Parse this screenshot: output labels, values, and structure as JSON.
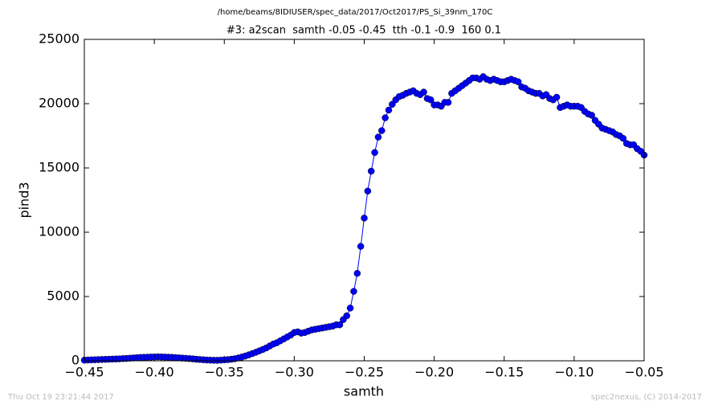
{
  "chart_data": {
    "type": "line",
    "title": "/home/beams/8IDIUSER/spec_data/2017/Oct2017/PS_Si_39nm_170C",
    "subtitle": "#3: a2scan  samth -0.05 -0.45  tth -0.1 -0.9  160 0.1",
    "xlabel": "samth",
    "ylabel": "pind3",
    "annotations": [
      "Thu Oct 19 23:21:44 2017",
      "spec2nexus, (C) 2014-2017"
    ],
    "color": "#0000ff",
    "x": [
      -0.45,
      -0.4475,
      -0.445,
      -0.4425,
      -0.44,
      -0.4375,
      -0.435,
      -0.4325,
      -0.43,
      -0.4275,
      -0.425,
      -0.4225,
      -0.42,
      -0.4175,
      -0.415,
      -0.4125,
      -0.41,
      -0.4075,
      -0.405,
      -0.4025,
      -0.4,
      -0.3975,
      -0.395,
      -0.3925,
      -0.39,
      -0.3875,
      -0.385,
      -0.3825,
      -0.38,
      -0.3775,
      -0.375,
      -0.3725,
      -0.37,
      -0.3675,
      -0.365,
      -0.3625,
      -0.36,
      -0.3575,
      -0.355,
      -0.3525,
      -0.35,
      -0.3475,
      -0.345,
      -0.3425,
      -0.34,
      -0.3375,
      -0.335,
      -0.3325,
      -0.33,
      -0.3275,
      -0.325,
      -0.3225,
      -0.32,
      -0.3175,
      -0.315,
      -0.3125,
      -0.31,
      -0.3075,
      -0.305,
      -0.3025,
      -0.3,
      -0.2975,
      -0.295,
      -0.2925,
      -0.29,
      -0.2875,
      -0.285,
      -0.2825,
      -0.28,
      -0.2775,
      -0.275,
      -0.2725,
      -0.27,
      -0.2675,
      -0.265,
      -0.2625,
      -0.26,
      -0.2575,
      -0.255,
      -0.2525,
      -0.25,
      -0.2475,
      -0.245,
      -0.2425,
      -0.24,
      -0.2375,
      -0.235,
      -0.2325,
      -0.23,
      -0.2275,
      -0.225,
      -0.2225,
      -0.22,
      -0.2175,
      -0.215,
      -0.2125,
      -0.21,
      -0.2075,
      -0.205,
      -0.2025,
      -0.2,
      -0.1975,
      -0.195,
      -0.1925,
      -0.19,
      -0.1875,
      -0.185,
      -0.1825,
      -0.18,
      -0.1775,
      -0.175,
      -0.1725,
      -0.17,
      -0.1675,
      -0.165,
      -0.1625,
      -0.16,
      -0.1575,
      -0.155,
      -0.1525,
      -0.15,
      -0.1475,
      -0.145,
      -0.1425,
      -0.14,
      -0.1375,
      -0.135,
      -0.1325,
      -0.13,
      -0.1275,
      -0.125,
      -0.1225,
      -0.12,
      -0.1175,
      -0.115,
      -0.1125,
      -0.11,
      -0.1075,
      -0.105,
      -0.1025,
      -0.1,
      -0.0975,
      -0.095,
      -0.0925,
      -0.09,
      -0.0875,
      -0.085,
      -0.0825,
      -0.08,
      -0.0775,
      -0.075,
      -0.0725,
      -0.07,
      -0.0675,
      -0.065,
      -0.0625,
      -0.06,
      -0.0575,
      -0.055,
      -0.0525,
      -0.05
    ],
    "values": [
      50,
      60,
      70,
      80,
      90,
      100,
      110,
      120,
      130,
      140,
      150,
      170,
      180,
      200,
      220,
      240,
      260,
      270,
      280,
      290,
      300,
      310,
      300,
      290,
      280,
      270,
      250,
      230,
      210,
      190,
      170,
      150,
      120,
      100,
      80,
      60,
      50,
      40,
      40,
      50,
      70,
      90,
      120,
      160,
      220,
      290,
      370,
      460,
      560,
      660,
      770,
      880,
      1000,
      1150,
      1300,
      1400,
      1550,
      1700,
      1850,
      2000,
      2200,
      2250,
      2150,
      2200,
      2300,
      2400,
      2450,
      2500,
      2550,
      2600,
      2650,
      2700,
      2800,
      2800,
      3200,
      3500,
      4100,
      5400,
      6800,
      8900,
      11100,
      13200,
      14750,
      16200,
      17400,
      17900,
      18900,
      19500,
      19950,
      20300,
      20550,
      20650,
      20800,
      20900,
      21000,
      20800,
      20700,
      20900,
      20400,
      20300,
      19900,
      19900,
      19800,
      20100,
      20100,
      20800,
      21000,
      21200,
      21400,
      21600,
      21800,
      22000,
      22000,
      21900,
      22100,
      21900,
      21800,
      21900,
      21800,
      21700,
      21700,
      21800,
      21900,
      21800,
      21700,
      21300,
      21200,
      21000,
      20900,
      20800,
      20800,
      20600,
      20700,
      20400,
      20300,
      20500,
      19700,
      19800,
      19900,
      19800,
      19800,
      19800,
      19700,
      19400,
      19200,
      19100,
      18700,
      18400,
      18100,
      18000,
      17900,
      17800,
      17600,
      17500,
      17300,
      16900,
      16800,
      16800,
      16500,
      16300,
      16000
    ],
    "xlim": [
      -0.45,
      -0.05
    ],
    "xticks": [
      {
        "value": -0.45,
        "label": "−0.45"
      },
      {
        "value": -0.4,
        "label": "−0.40"
      },
      {
        "value": -0.35,
        "label": "−0.35"
      },
      {
        "value": -0.3,
        "label": "−0.30"
      },
      {
        "value": -0.25,
        "label": "−0.25"
      },
      {
        "value": -0.2,
        "label": "−0.20"
      },
      {
        "value": -0.15,
        "label": "−0.15"
      },
      {
        "value": -0.1,
        "label": "−0.10"
      },
      {
        "value": -0.05,
        "label": "−0.05"
      }
    ],
    "ylim": [
      0,
      25000
    ],
    "yticks": [
      0,
      5000,
      10000,
      15000,
      20000,
      25000
    ]
  }
}
